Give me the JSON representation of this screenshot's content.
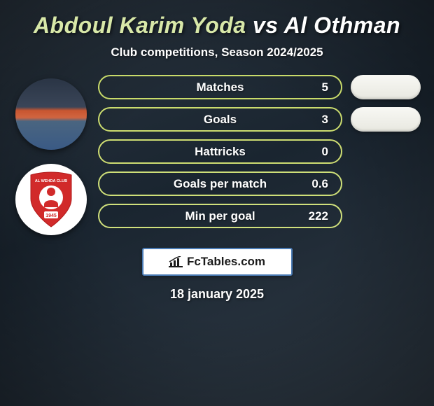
{
  "title": {
    "player1": "Abdoul Karim Yoda",
    "vs": "vs",
    "player2": "Al Othman",
    "color_p1": "#d8e8a8",
    "color_vs": "#ffffff",
    "color_p2": "#ffffff",
    "fontsize": 32
  },
  "subtitle": {
    "text": "Club competitions, Season 2024/2025",
    "fontsize": 17
  },
  "avatars": {
    "player1": {
      "bg_gradient": [
        "#2a3545",
        "#3a5a85"
      ]
    },
    "player2": {
      "logo_bg": "#ffffff",
      "shield_color": "#d12a2a",
      "shield_text_top": "AL WEHDA CLUB",
      "shield_year": "1945"
    }
  },
  "stats": [
    {
      "label": "Matches",
      "value_left": "",
      "value_right": "5",
      "border_color": "#c9db6a",
      "has_side_pill": true
    },
    {
      "label": "Goals",
      "value_left": "",
      "value_right": "3",
      "border_color": "#cbdc6e",
      "has_side_pill": true
    },
    {
      "label": "Hattricks",
      "value_left": "",
      "value_right": "0",
      "border_color": "#cedd72",
      "has_side_pill": false
    },
    {
      "label": "Goals per match",
      "value_left": "",
      "value_right": "0.6",
      "border_color": "#cedf78",
      "has_side_pill": false
    },
    {
      "label": "Min per goal",
      "value_left": "",
      "value_right": "222",
      "border_color": "#d0e07c",
      "has_side_pill": false
    }
  ],
  "pill_style": {
    "height": 35,
    "radius": 18,
    "fontsize": 17,
    "text_color": "#ffffff"
  },
  "side_pill_style": {
    "width": 100,
    "bg": "#f0f0e8"
  },
  "brand": {
    "text": "FcTables.com",
    "border_color": "#4a7bb5",
    "bg": "#ffffff",
    "icon_color": "#1a1a1a"
  },
  "date": {
    "text": "18 january 2025",
    "fontsize": 18
  },
  "background": {
    "gradient": [
      "#2a3540",
      "#1a2530",
      "#2f3a45"
    ]
  }
}
